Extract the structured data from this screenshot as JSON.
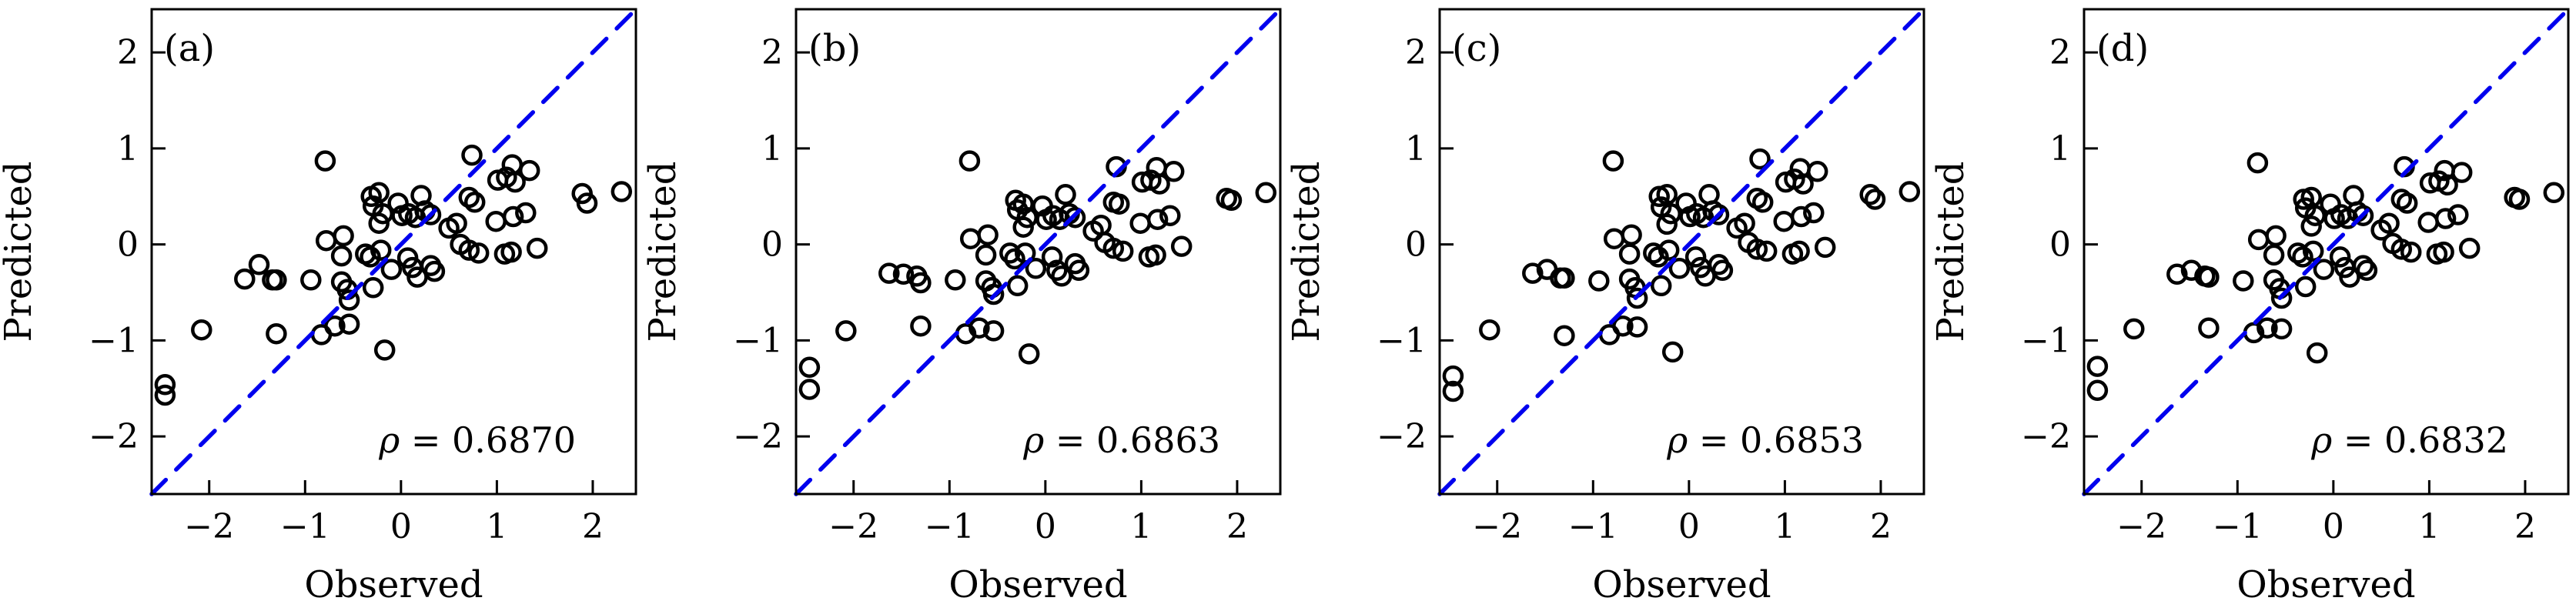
{
  "figure": {
    "background_color": "#ffffff",
    "axis_color": "#000000",
    "text_color": "#000000",
    "xlabel": "Observed",
    "ylabel": "Predicted",
    "x_ticks": [
      -2,
      -1,
      0,
      1,
      2
    ],
    "y_ticks": [
      -2,
      -1,
      0,
      1,
      2
    ],
    "x_tick_labels": [
      "−2",
      "−1",
      "0",
      "1",
      "2"
    ],
    "y_tick_labels": [
      "2",
      "1",
      "0",
      "−1",
      "−2"
    ],
    "xlim": [
      -2.6,
      2.45
    ],
    "ylim": [
      -2.6,
      2.45
    ],
    "grid": false,
    "marker": {
      "shape": "open-circle",
      "edge_color": "#000000",
      "fill": "none"
    },
    "identity_line": {
      "meaning": "y = x",
      "style": "dashed",
      "color": "#0000ee"
    }
  },
  "chart_data": [
    {
      "type": "scatter",
      "panel_label": "(a)",
      "xlabel": "Observed",
      "ylabel": "Predicted",
      "annotation": "ρ = 0.6870",
      "rho_symbol": "ρ",
      "rho_value": "0.6870",
      "points": [
        [
          -0.79,
          0.87
        ],
        [
          0.74,
          0.93
        ],
        [
          1.16,
          0.83
        ],
        [
          1.34,
          0.77
        ],
        [
          1.01,
          0.67
        ],
        [
          1.1,
          0.7
        ],
        [
          1.19,
          0.65
        ],
        [
          1.89,
          0.53
        ],
        [
          1.94,
          0.43
        ],
        [
          2.3,
          0.55
        ],
        [
          -0.31,
          0.5
        ],
        [
          -0.23,
          0.54
        ],
        [
          -0.29,
          0.4
        ],
        [
          -0.19,
          0.32
        ],
        [
          -0.23,
          0.22
        ],
        [
          -0.03,
          0.43
        ],
        [
          0.01,
          0.3
        ],
        [
          0.08,
          0.32
        ],
        [
          0.15,
          0.28
        ],
        [
          0.21,
          0.51
        ],
        [
          0.25,
          0.35
        ],
        [
          0.31,
          0.31
        ],
        [
          0.5,
          0.17
        ],
        [
          0.58,
          0.22
        ],
        [
          0.71,
          0.49
        ],
        [
          0.77,
          0.44
        ],
        [
          0.99,
          0.24
        ],
        [
          1.17,
          0.29
        ],
        [
          1.3,
          0.33
        ],
        [
          -0.78,
          0.04
        ],
        [
          -0.6,
          0.09
        ],
        [
          -0.62,
          -0.12
        ],
        [
          -0.37,
          -0.1
        ],
        [
          -0.32,
          -0.13
        ],
        [
          -0.21,
          -0.06
        ],
        [
          -0.1,
          -0.26
        ],
        [
          0.07,
          -0.14
        ],
        [
          0.12,
          -0.24
        ],
        [
          0.17,
          -0.34
        ],
        [
          0.31,
          -0.22
        ],
        [
          0.35,
          -0.28
        ],
        [
          0.62,
          0.0
        ],
        [
          0.71,
          -0.06
        ],
        [
          0.81,
          -0.09
        ],
        [
          1.08,
          -0.1
        ],
        [
          1.15,
          -0.08
        ],
        [
          1.42,
          -0.04
        ],
        [
          -1.48,
          -0.21
        ],
        [
          -1.63,
          -0.36
        ],
        [
          -1.34,
          -0.37
        ],
        [
          -1.3,
          -0.37
        ],
        [
          -0.94,
          -0.37
        ],
        [
          -0.62,
          -0.39
        ],
        [
          -0.56,
          -0.47
        ],
        [
          -0.29,
          -0.45
        ],
        [
          -0.54,
          -0.58
        ],
        [
          -0.69,
          -0.85
        ],
        [
          -0.54,
          -0.83
        ],
        [
          -0.83,
          -0.94
        ],
        [
          -1.3,
          -0.93
        ],
        [
          -2.08,
          -0.89
        ],
        [
          -0.17,
          -1.1
        ],
        [
          -2.46,
          -1.46
        ],
        [
          -2.46,
          -1.57
        ]
      ]
    },
    {
      "type": "scatter",
      "panel_label": "(b)",
      "xlabel": "Observed",
      "ylabel": "Predicted",
      "annotation": "ρ = 0.6863",
      "rho_symbol": "ρ",
      "rho_value": "0.6863",
      "points": [
        [
          -0.79,
          0.87
        ],
        [
          0.74,
          0.81
        ],
        [
          1.16,
          0.8
        ],
        [
          1.34,
          0.76
        ],
        [
          1.01,
          0.65
        ],
        [
          1.1,
          0.67
        ],
        [
          1.19,
          0.63
        ],
        [
          1.89,
          0.48
        ],
        [
          1.94,
          0.46
        ],
        [
          2.3,
          0.54
        ],
        [
          -0.31,
          0.46
        ],
        [
          -0.23,
          0.42
        ],
        [
          -0.29,
          0.36
        ],
        [
          -0.19,
          0.28
        ],
        [
          -0.23,
          0.18
        ],
        [
          -0.03,
          0.4
        ],
        [
          0.01,
          0.26
        ],
        [
          0.08,
          0.3
        ],
        [
          0.15,
          0.26
        ],
        [
          0.21,
          0.52
        ],
        [
          0.25,
          0.32
        ],
        [
          0.31,
          0.28
        ],
        [
          0.5,
          0.14
        ],
        [
          0.58,
          0.2
        ],
        [
          0.71,
          0.44
        ],
        [
          0.77,
          0.42
        ],
        [
          0.99,
          0.22
        ],
        [
          1.17,
          0.26
        ],
        [
          1.3,
          0.3
        ],
        [
          -0.78,
          0.06
        ],
        [
          -0.6,
          0.1
        ],
        [
          -0.62,
          -0.11
        ],
        [
          -0.37,
          -0.09
        ],
        [
          -0.32,
          -0.15
        ],
        [
          -0.21,
          -0.09
        ],
        [
          -0.1,
          -0.25
        ],
        [
          0.07,
          -0.13
        ],
        [
          0.12,
          -0.27
        ],
        [
          0.17,
          -0.33
        ],
        [
          0.31,
          -0.2
        ],
        [
          0.35,
          -0.27
        ],
        [
          0.62,
          0.02
        ],
        [
          0.71,
          -0.04
        ],
        [
          0.81,
          -0.07
        ],
        [
          1.08,
          -0.13
        ],
        [
          1.15,
          -0.11
        ],
        [
          1.42,
          -0.02
        ],
        [
          -1.48,
          -0.31
        ],
        [
          -1.63,
          -0.3
        ],
        [
          -1.34,
          -0.33
        ],
        [
          -1.3,
          -0.4
        ],
        [
          -0.94,
          -0.37
        ],
        [
          -0.62,
          -0.38
        ],
        [
          -0.56,
          -0.45
        ],
        [
          -0.29,
          -0.43
        ],
        [
          -0.54,
          -0.52
        ],
        [
          -0.69,
          -0.87
        ],
        [
          -0.54,
          -0.9
        ],
        [
          -0.83,
          -0.93
        ],
        [
          -1.3,
          -0.85
        ],
        [
          -2.08,
          -0.9
        ],
        [
          -0.17,
          -1.14
        ],
        [
          -2.46,
          -1.28
        ],
        [
          -2.46,
          -1.51
        ]
      ]
    },
    {
      "type": "scatter",
      "panel_label": "(c)",
      "xlabel": "Observed",
      "ylabel": "Predicted",
      "annotation": "ρ = 0.6853",
      "rho_symbol": "ρ",
      "rho_value": "0.6853",
      "points": [
        [
          -0.79,
          0.87
        ],
        [
          0.74,
          0.89
        ],
        [
          1.16,
          0.79
        ],
        [
          1.34,
          0.76
        ],
        [
          1.01,
          0.65
        ],
        [
          1.1,
          0.68
        ],
        [
          1.19,
          0.63
        ],
        [
          1.89,
          0.52
        ],
        [
          1.94,
          0.47
        ],
        [
          2.3,
          0.55
        ],
        [
          -0.31,
          0.5
        ],
        [
          -0.23,
          0.52
        ],
        [
          -0.29,
          0.39
        ],
        [
          -0.19,
          0.32
        ],
        [
          -0.23,
          0.21
        ],
        [
          -0.03,
          0.43
        ],
        [
          0.01,
          0.29
        ],
        [
          0.08,
          0.32
        ],
        [
          0.15,
          0.28
        ],
        [
          0.21,
          0.52
        ],
        [
          0.25,
          0.35
        ],
        [
          0.31,
          0.31
        ],
        [
          0.5,
          0.17
        ],
        [
          0.58,
          0.22
        ],
        [
          0.71,
          0.48
        ],
        [
          0.77,
          0.44
        ],
        [
          0.99,
          0.24
        ],
        [
          1.17,
          0.29
        ],
        [
          1.3,
          0.33
        ],
        [
          -0.78,
          0.06
        ],
        [
          -0.6,
          0.1
        ],
        [
          -0.62,
          -0.1
        ],
        [
          -0.37,
          -0.09
        ],
        [
          -0.32,
          -0.13
        ],
        [
          -0.21,
          -0.06
        ],
        [
          -0.1,
          -0.25
        ],
        [
          0.07,
          -0.13
        ],
        [
          0.12,
          -0.24
        ],
        [
          0.17,
          -0.33
        ],
        [
          0.31,
          -0.21
        ],
        [
          0.35,
          -0.27
        ],
        [
          0.62,
          0.02
        ],
        [
          0.71,
          -0.05
        ],
        [
          0.81,
          -0.07
        ],
        [
          1.08,
          -0.1
        ],
        [
          1.15,
          -0.07
        ],
        [
          1.42,
          -0.03
        ],
        [
          -1.48,
          -0.26
        ],
        [
          -1.63,
          -0.3
        ],
        [
          -1.34,
          -0.35
        ],
        [
          -1.3,
          -0.35
        ],
        [
          -0.94,
          -0.38
        ],
        [
          -0.62,
          -0.36
        ],
        [
          -0.56,
          -0.45
        ],
        [
          -0.29,
          -0.43
        ],
        [
          -0.54,
          -0.56
        ],
        [
          -0.69,
          -0.85
        ],
        [
          -0.54,
          -0.86
        ],
        [
          -0.83,
          -0.94
        ],
        [
          -1.3,
          -0.95
        ],
        [
          -2.08,
          -0.89
        ],
        [
          -0.17,
          -1.12
        ],
        [
          -2.46,
          -1.37
        ],
        [
          -2.46,
          -1.53
        ]
      ]
    },
    {
      "type": "scatter",
      "panel_label": "(d)",
      "xlabel": "Observed",
      "ylabel": "Predicted",
      "annotation": "ρ = 0.6832",
      "rho_symbol": "ρ",
      "rho_value": "0.6832",
      "points": [
        [
          -0.79,
          0.85
        ],
        [
          0.74,
          0.81
        ],
        [
          1.16,
          0.77
        ],
        [
          1.34,
          0.75
        ],
        [
          1.01,
          0.64
        ],
        [
          1.1,
          0.66
        ],
        [
          1.19,
          0.62
        ],
        [
          1.89,
          0.49
        ],
        [
          1.94,
          0.47
        ],
        [
          2.3,
          0.54
        ],
        [
          -0.31,
          0.47
        ],
        [
          -0.23,
          0.49
        ],
        [
          -0.29,
          0.38
        ],
        [
          -0.19,
          0.3
        ],
        [
          -0.23,
          0.19
        ],
        [
          -0.03,
          0.42
        ],
        [
          0.01,
          0.27
        ],
        [
          0.08,
          0.31
        ],
        [
          0.15,
          0.27
        ],
        [
          0.21,
          0.51
        ],
        [
          0.25,
          0.34
        ],
        [
          0.31,
          0.3
        ],
        [
          0.5,
          0.15
        ],
        [
          0.58,
          0.22
        ],
        [
          0.71,
          0.47
        ],
        [
          0.77,
          0.43
        ],
        [
          0.99,
          0.23
        ],
        [
          1.17,
          0.27
        ],
        [
          1.3,
          0.31
        ],
        [
          -0.78,
          0.05
        ],
        [
          -0.6,
          0.09
        ],
        [
          -0.62,
          -0.11
        ],
        [
          -0.37,
          -0.09
        ],
        [
          -0.32,
          -0.13
        ],
        [
          -0.21,
          -0.07
        ],
        [
          -0.1,
          -0.26
        ],
        [
          0.07,
          -0.13
        ],
        [
          0.12,
          -0.24
        ],
        [
          0.17,
          -0.34
        ],
        [
          0.31,
          -0.22
        ],
        [
          0.35,
          -0.27
        ],
        [
          0.62,
          0.01
        ],
        [
          0.71,
          -0.05
        ],
        [
          0.81,
          -0.08
        ],
        [
          1.08,
          -0.1
        ],
        [
          1.15,
          -0.08
        ],
        [
          1.42,
          -0.04
        ],
        [
          -1.48,
          -0.27
        ],
        [
          -1.63,
          -0.31
        ],
        [
          -1.34,
          -0.33
        ],
        [
          -1.3,
          -0.34
        ],
        [
          -0.94,
          -0.38
        ],
        [
          -0.62,
          -0.37
        ],
        [
          -0.56,
          -0.46
        ],
        [
          -0.29,
          -0.44
        ],
        [
          -0.54,
          -0.56
        ],
        [
          -0.69,
          -0.87
        ],
        [
          -0.54,
          -0.88
        ],
        [
          -0.83,
          -0.92
        ],
        [
          -1.3,
          -0.87
        ],
        [
          -2.08,
          -0.88
        ],
        [
          -0.17,
          -1.13
        ],
        [
          -2.46,
          -1.27
        ],
        [
          -2.46,
          -1.52
        ]
      ]
    }
  ]
}
